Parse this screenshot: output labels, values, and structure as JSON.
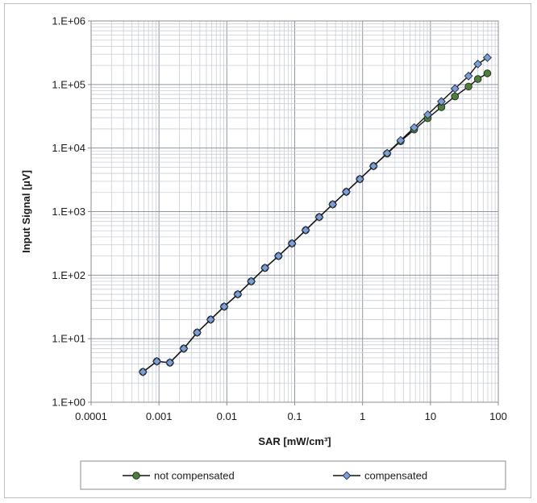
{
  "chart_data": {
    "type": "line",
    "xlabel": "SAR [mW/cm³]",
    "ylabel": "Input Signal [µV]",
    "x_scale": "log",
    "y_scale": "log",
    "xlim": [
      0.0001,
      100
    ],
    "ylim": [
      1,
      1000000
    ],
    "grid": true,
    "legend_position": "bottom",
    "x_ticks": [
      "0.0001",
      "0.001",
      "0.01",
      "0.1",
      "1",
      "10",
      "100"
    ],
    "y_ticks": [
      "1.E+00",
      "1.E+01",
      "1.E+02",
      "1.E+03",
      "1.E+04",
      "1.E+05",
      "1.E+06"
    ],
    "series": [
      {
        "name": "not compensated",
        "color": "#4f7d3a",
        "marker": "circle",
        "x": [
          0.00058,
          0.00093,
          0.00145,
          0.00232,
          0.00365,
          0.00578,
          0.00914,
          0.0145,
          0.0229,
          0.0365,
          0.0577,
          0.0912,
          0.145,
          0.23,
          0.363,
          0.576,
          0.913,
          1.45,
          2.3,
          3.64,
          5.76,
          9.13,
          14.5,
          23.0,
          36.4,
          50.0,
          69.0
        ],
        "y": [
          3.0,
          4.4,
          4.2,
          7.0,
          12.5,
          20,
          32,
          50,
          80,
          130,
          200,
          315,
          510,
          820,
          1300,
          2050,
          3250,
          5200,
          8200,
          12800,
          19500,
          29500,
          44000,
          65000,
          93000,
          122000,
          150000
        ]
      },
      {
        "name": "compensated",
        "color": "#7f9ed6",
        "marker": "diamond",
        "x": [
          0.00058,
          0.00093,
          0.00145,
          0.00232,
          0.00365,
          0.00578,
          0.00914,
          0.0145,
          0.0229,
          0.0365,
          0.0577,
          0.0912,
          0.145,
          0.23,
          0.363,
          0.576,
          0.913,
          1.45,
          2.3,
          3.64,
          5.76,
          9.13,
          14.5,
          23.0,
          36.4,
          50.0,
          69.0
        ],
        "y": [
          3.0,
          4.4,
          4.2,
          7.0,
          12.5,
          20,
          32,
          50,
          80,
          130,
          200,
          315,
          510,
          820,
          1300,
          2050,
          3250,
          5200,
          8300,
          13200,
          21000,
          33500,
          54000,
          86000,
          136000,
          210000,
          265000
        ]
      }
    ]
  }
}
